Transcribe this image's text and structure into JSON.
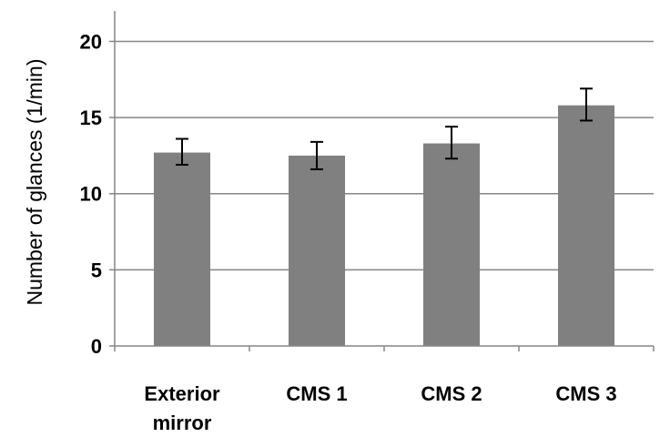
{
  "chart_data": {
    "type": "bar",
    "title": "",
    "xlabel": "",
    "ylabel": "Number of glances (1/min)",
    "categories": [
      [
        "Exterior",
        "mirror"
      ],
      [
        "CMS 1"
      ],
      [
        "CMS 2"
      ],
      [
        "CMS 3"
      ]
    ],
    "values": [
      12.7,
      12.5,
      13.3,
      15.8
    ],
    "error_low": [
      11.9,
      11.6,
      12.3,
      14.8
    ],
    "error_high": [
      13.6,
      13.4,
      14.4,
      16.9
    ],
    "ylim": [
      0,
      22
    ],
    "yticks": [
      0,
      5,
      10,
      15,
      20
    ],
    "grid": true,
    "legend": "none",
    "bar_color": "#808080",
    "grid_color": "#868686"
  }
}
